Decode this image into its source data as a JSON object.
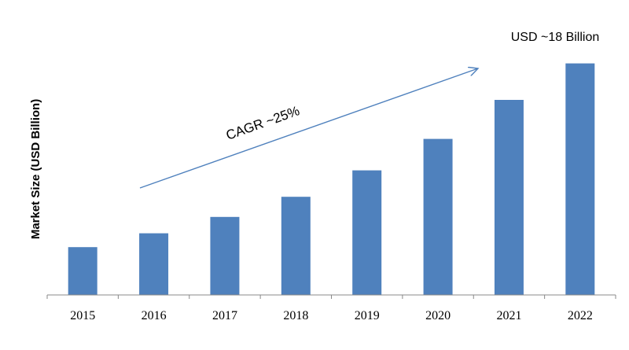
{
  "chart_data": {
    "type": "bar",
    "categories": [
      "2015",
      "2016",
      "2017",
      "2018",
      "2019",
      "2020",
      "2021",
      "2022"
    ],
    "values": [
      3.8,
      4.9,
      6.2,
      7.8,
      9.9,
      12.4,
      15.5,
      18.4
    ],
    "xlabel": "",
    "ylabel": "Market Size (USD Billion)",
    "ylim": [
      0,
      20
    ],
    "grid": false,
    "bar_color": "#4F81BD",
    "annotations": {
      "value_note": "USD ~18 Billion",
      "cagr": "CAGR ~25%"
    }
  }
}
